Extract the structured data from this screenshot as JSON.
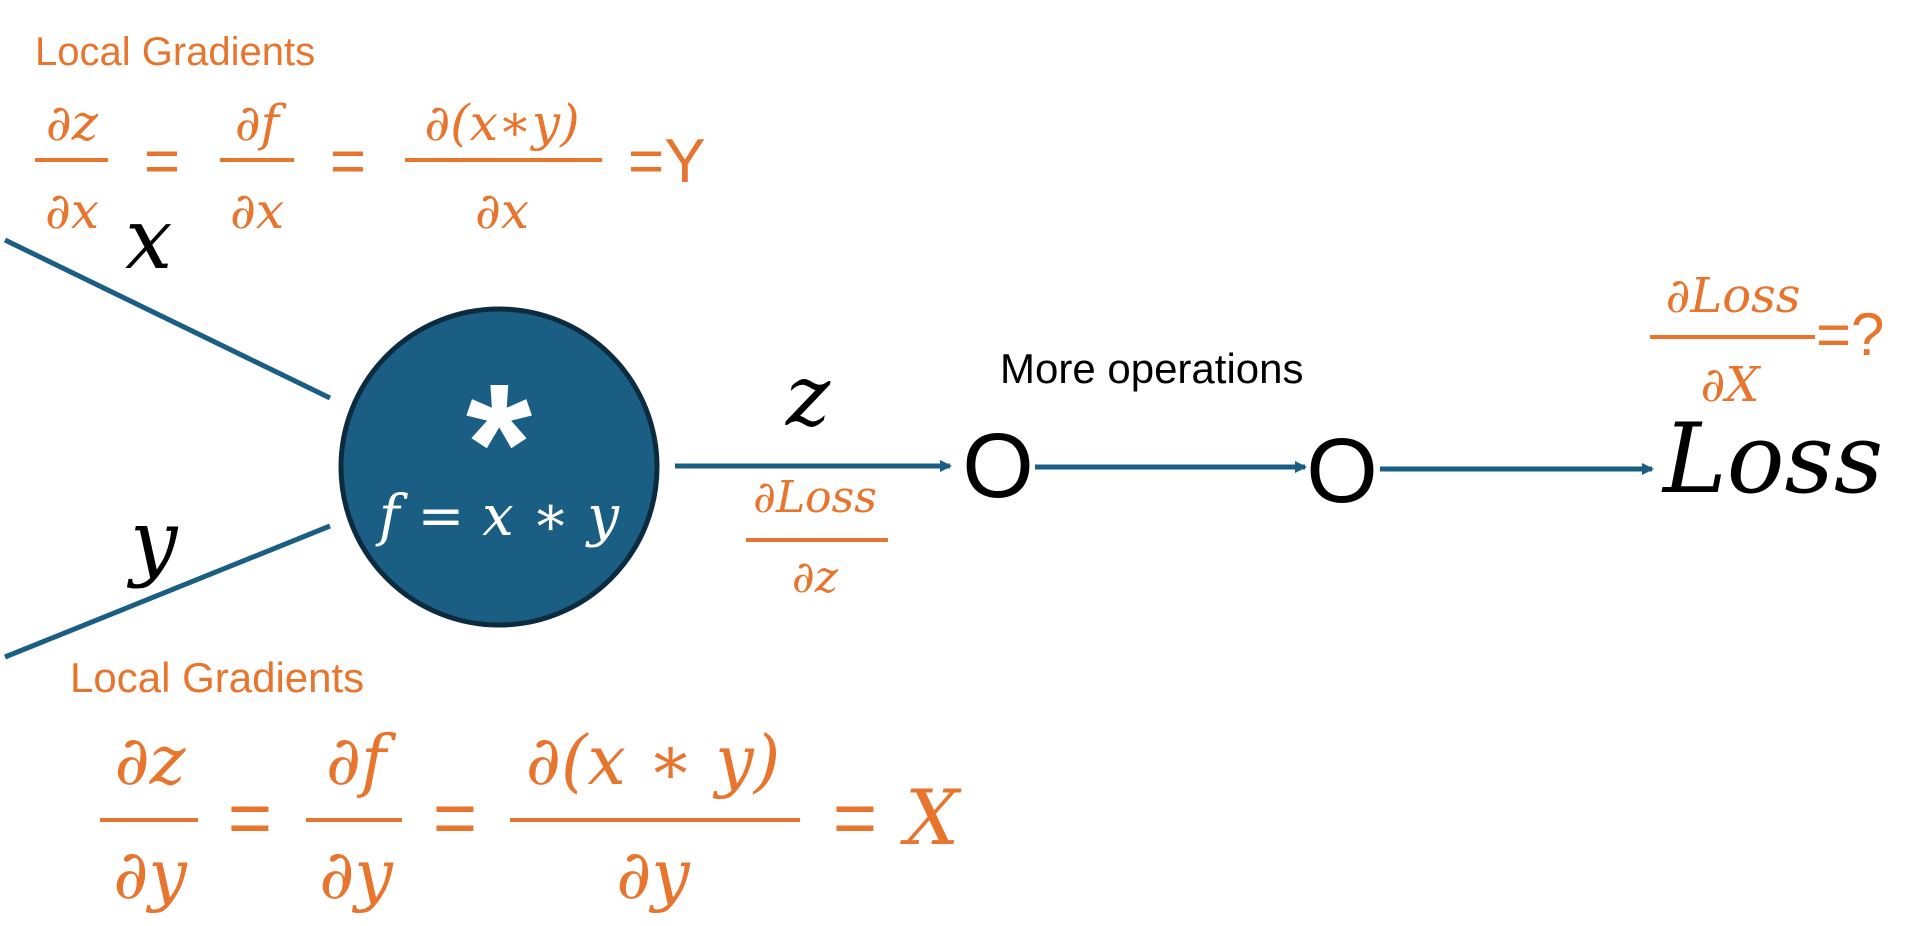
{
  "colors": {
    "orange": "#E8752E",
    "blue": "#1A5E83",
    "node_border": "#0D2B3E",
    "black": "#000000"
  },
  "top_gradient": {
    "heading": "Local Gradients",
    "frac1_num": "∂z",
    "frac1_den": "∂x",
    "frac2_num": "∂f",
    "frac2_den": "∂x",
    "frac3_num": "∂(x∗y)",
    "frac3_den": "∂x",
    "eq": "=",
    "result": "=Y"
  },
  "bottom_gradient": {
    "heading": "Local Gradients",
    "frac1_num": "∂z",
    "frac1_den": "∂y",
    "frac2_num": "∂f",
    "frac2_den": "∂y",
    "frac3_num": "∂(x ∗ y)",
    "frac3_den": "∂y",
    "eq": "=",
    "result": "X"
  },
  "inputs": {
    "x_label": "x",
    "y_label": "y"
  },
  "node": {
    "symbol": "*",
    "equation": "f = x ∗ y"
  },
  "output_edge": {
    "label": "z",
    "grad_num": "∂Loss",
    "grad_den": "∂z"
  },
  "more_operations": "More operations",
  "op_nodes": [
    "O",
    "O"
  ],
  "loss_label": "Loss",
  "final_gradient": {
    "num": "∂Loss",
    "den": "∂X",
    "suffix": "=?"
  }
}
